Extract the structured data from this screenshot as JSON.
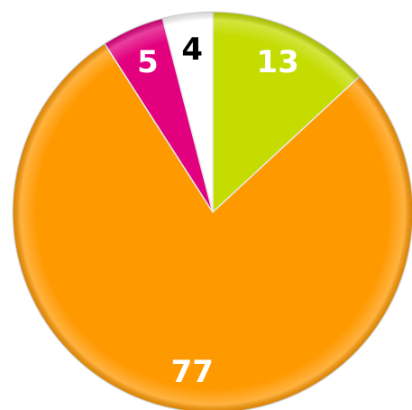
{
  "chart_data": {
    "type": "pie",
    "categories": [
      null,
      null,
      null,
      null
    ],
    "values": [
      13,
      77,
      5,
      4
    ],
    "colors": [
      "#c4dc00",
      "#ff9900",
      "#e2007e",
      "#ffffff"
    ]
  }
}
